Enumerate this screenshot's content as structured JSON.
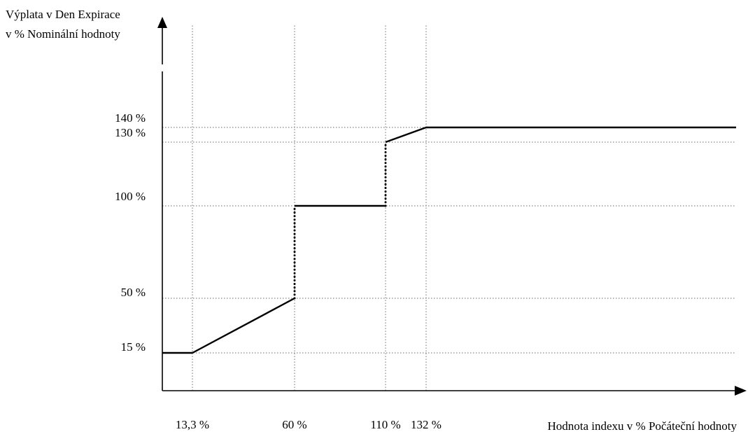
{
  "chart_data": {
    "type": "line",
    "ylabel": [
      "Výplata v Den Expirace",
      "v % Nominální hodnoty"
    ],
    "xlabel": "Hodnota indexu v % Počáteční hodnoty",
    "x_ticks": [
      {
        "value": 13.3,
        "label": "13,3 %"
      },
      {
        "value": 60,
        "label": "60 %"
      },
      {
        "value": 110,
        "label": "110 %"
      },
      {
        "value": 132,
        "label": "132 %"
      }
    ],
    "y_ticks": [
      {
        "value": 15,
        "label": "15 %"
      },
      {
        "value": 50,
        "label": "50 %"
      },
      {
        "value": 100,
        "label": "100 %"
      },
      {
        "value": 130,
        "label": "130 %"
      },
      {
        "value": 140,
        "label": "140 %"
      }
    ],
    "grid": true,
    "series": [
      {
        "segments": [
          {
            "style": "solid",
            "points": [
              [
                0,
                15
              ],
              [
                13.3,
                15
              ]
            ]
          },
          {
            "style": "solid",
            "points": [
              [
                13.3,
                15
              ],
              [
                60,
                50
              ]
            ]
          },
          {
            "style": "dotted",
            "points": [
              [
                60,
                50
              ],
              [
                60,
                100
              ]
            ]
          },
          {
            "style": "solid",
            "points": [
              [
                60,
                100
              ],
              [
                110,
                100
              ]
            ]
          },
          {
            "style": "dotted",
            "points": [
              [
                110,
                100
              ],
              [
                110,
                130
              ]
            ]
          },
          {
            "style": "solid",
            "points": [
              [
                110,
                130
              ],
              [
                132,
                140
              ]
            ]
          },
          {
            "style": "solid",
            "points": [
              [
                132,
                140
              ],
              [
                300,
                140
              ]
            ]
          }
        ]
      }
    ]
  }
}
